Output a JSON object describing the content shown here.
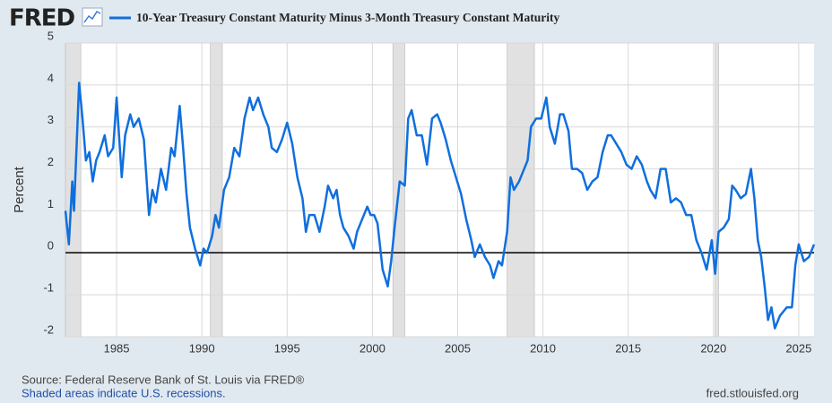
{
  "chart_data": {
    "type": "line",
    "logo": "FRED",
    "title": "10-Year Treasury Constant Maturity Minus 3-Month Treasury Constant Maturity",
    "y_label": "Percent",
    "source": "Source: Federal Reserve Bank of St. Louis via FRED®",
    "note": "Shaded areas indicate U.S. recessions.",
    "url": "fred.stlouisfed.org",
    "xlim": [
      1982.0,
      2025.9
    ],
    "xticks": [
      1985,
      1990,
      1995,
      2000,
      2005,
      2010,
      2015,
      2020,
      2025
    ],
    "ylim": [
      -2,
      5
    ],
    "yticks": [
      -2,
      -1,
      0,
      1,
      2,
      3,
      4,
      5
    ],
    "grid": true,
    "recessions": [
      {
        "start": 1982.0,
        "end": 1982.9
      },
      {
        "start": 1990.5,
        "end": 1991.2
      },
      {
        "start": 2001.2,
        "end": 2001.9
      },
      {
        "start": 2007.9,
        "end": 2009.5
      },
      {
        "start": 2020.1,
        "end": 2020.3
      }
    ],
    "x": [
      1982.0,
      1982.2,
      1982.4,
      1982.5,
      1982.7,
      1982.8,
      1983.0,
      1983.2,
      1983.4,
      1983.6,
      1983.8,
      1984.0,
      1984.3,
      1984.5,
      1984.8,
      1985.0,
      1985.3,
      1985.5,
      1985.8,
      1986.0,
      1986.3,
      1986.6,
      1986.9,
      1987.1,
      1987.3,
      1987.6,
      1987.9,
      1988.2,
      1988.4,
      1988.7,
      1988.9,
      1989.1,
      1989.3,
      1989.6,
      1989.9,
      1990.1,
      1990.3,
      1990.6,
      1990.8,
      1991.0,
      1991.3,
      1991.6,
      1991.9,
      1992.2,
      1992.5,
      1992.8,
      1993.0,
      1993.3,
      1993.6,
      1993.9,
      1994.1,
      1994.4,
      1994.7,
      1995.0,
      1995.3,
      1995.6,
      1995.9,
      1996.1,
      1996.3,
      1996.6,
      1996.9,
      1997.2,
      1997.4,
      1997.7,
      1997.9,
      1998.1,
      1998.3,
      1998.6,
      1998.9,
      1999.1,
      1999.4,
      1999.7,
      1999.9,
      2000.1,
      2000.3,
      2000.6,
      2000.9,
      2001.1,
      2001.3,
      2001.6,
      2001.9,
      2002.1,
      2002.3,
      2002.6,
      2002.9,
      2003.2,
      2003.5,
      2003.8,
      2004.0,
      2004.3,
      2004.6,
      2004.9,
      2005.2,
      2005.5,
      2005.8,
      2006.0,
      2006.3,
      2006.6,
      2006.9,
      2007.1,
      2007.4,
      2007.6,
      2007.9,
      2008.1,
      2008.3,
      2008.6,
      2008.9,
      2009.1,
      2009.3,
      2009.6,
      2009.9,
      2010.2,
      2010.4,
      2010.7,
      2011.0,
      2011.2,
      2011.5,
      2011.7,
      2012.0,
      2012.3,
      2012.6,
      2012.9,
      2013.2,
      2013.5,
      2013.8,
      2014.0,
      2014.3,
      2014.6,
      2014.9,
      2015.2,
      2015.5,
      2015.8,
      2016.1,
      2016.3,
      2016.6,
      2016.9,
      2017.2,
      2017.5,
      2017.8,
      2018.1,
      2018.4,
      2018.7,
      2019.0,
      2019.3,
      2019.6,
      2019.9,
      2020.1,
      2020.3,
      2020.6,
      2020.9,
      2021.1,
      2021.3,
      2021.6,
      2021.9,
      2022.2,
      2022.4,
      2022.6,
      2022.8,
      2023.0,
      2023.2,
      2023.4,
      2023.6,
      2023.9,
      2024.1,
      2024.3,
      2024.6,
      2024.8,
      2025.0,
      2025.3,
      2025.6,
      2025.9
    ],
    "series": [
      {
        "name": "10-Year Treasury Constant Maturity Minus 3-Month Treasury Constant Maturity",
        "color": "#0f6fde",
        "values": [
          1.0,
          0.2,
          1.7,
          1.0,
          3.0,
          4.05,
          3.2,
          2.2,
          2.4,
          1.7,
          2.2,
          2.4,
          2.8,
          2.3,
          2.5,
          3.7,
          1.8,
          2.8,
          3.3,
          3.0,
          3.2,
          2.7,
          0.9,
          1.5,
          1.2,
          2.0,
          1.5,
          2.5,
          2.3,
          3.5,
          2.5,
          1.4,
          0.6,
          0.1,
          -0.3,
          0.1,
          0.0,
          0.4,
          0.9,
          0.6,
          1.5,
          1.8,
          2.5,
          2.3,
          3.2,
          3.7,
          3.4,
          3.7,
          3.3,
          3.0,
          2.5,
          2.4,
          2.7,
          3.1,
          2.6,
          1.8,
          1.3,
          0.5,
          0.9,
          0.9,
          0.5,
          1.1,
          1.6,
          1.3,
          1.5,
          0.9,
          0.6,
          0.4,
          0.1,
          0.5,
          0.8,
          1.1,
          0.9,
          0.9,
          0.7,
          -0.4,
          -0.8,
          -0.2,
          0.6,
          1.7,
          1.6,
          3.2,
          3.4,
          2.8,
          2.8,
          2.1,
          3.2,
          3.3,
          3.1,
          2.7,
          2.2,
          1.8,
          1.4,
          0.8,
          0.3,
          -0.1,
          0.2,
          -0.1,
          -0.3,
          -0.6,
          -0.2,
          -0.3,
          0.5,
          1.8,
          1.5,
          1.7,
          2.0,
          2.2,
          3.0,
          3.2,
          3.2,
          3.7,
          3.0,
          2.6,
          3.3,
          3.3,
          2.9,
          2.0,
          2.0,
          1.9,
          1.5,
          1.7,
          1.8,
          2.4,
          2.8,
          2.8,
          2.6,
          2.4,
          2.1,
          2.0,
          2.3,
          2.1,
          1.7,
          1.5,
          1.3,
          2.0,
          2.0,
          1.2,
          1.3,
          1.2,
          0.9,
          0.9,
          0.3,
          0.0,
          -0.4,
          0.3,
          -0.5,
          0.5,
          0.6,
          0.8,
          1.6,
          1.5,
          1.3,
          1.4,
          2.0,
          1.3,
          0.3,
          -0.1,
          -0.8,
          -1.6,
          -1.3,
          -1.8,
          -1.5,
          -1.4,
          -1.3,
          -1.3,
          -0.3,
          0.2,
          -0.2,
          -0.1,
          0.2
        ]
      }
    ]
  }
}
